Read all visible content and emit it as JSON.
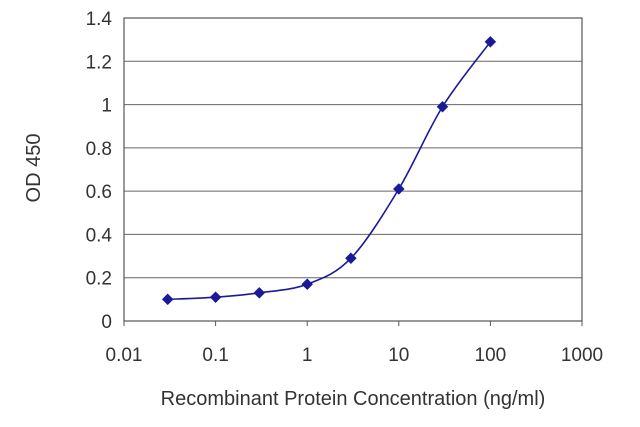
{
  "chart_data": {
    "type": "line",
    "title": "",
    "xlabel": "Recombinant Protein Concentration (ng/ml)",
    "ylabel": "OD 450",
    "x_scale": "log",
    "xlim": [
      0.01,
      1000
    ],
    "ylim": [
      0,
      1.4
    ],
    "x_ticks": [
      0.01,
      0.1,
      1,
      10,
      100,
      1000
    ],
    "x_tick_labels": [
      "0.01",
      "0.1",
      "1",
      "10",
      "100",
      "1000"
    ],
    "y_ticks": [
      0,
      0.2,
      0.4,
      0.6,
      0.8,
      1,
      1.2,
      1.4
    ],
    "y_tick_labels": [
      "0",
      "0.2",
      "0.4",
      "0.6",
      "0.8",
      "1",
      "1.2",
      "1.4"
    ],
    "grid": "horizontal",
    "legend": "none",
    "series": [
      {
        "x": [
          0.03,
          0.1,
          0.3,
          1,
          3,
          10,
          30,
          100
        ],
        "y": [
          0.1,
          0.11,
          0.13,
          0.17,
          0.29,
          0.61,
          0.99,
          1.29
        ],
        "color": "#1a1a99",
        "marker": "diamond"
      }
    ]
  }
}
